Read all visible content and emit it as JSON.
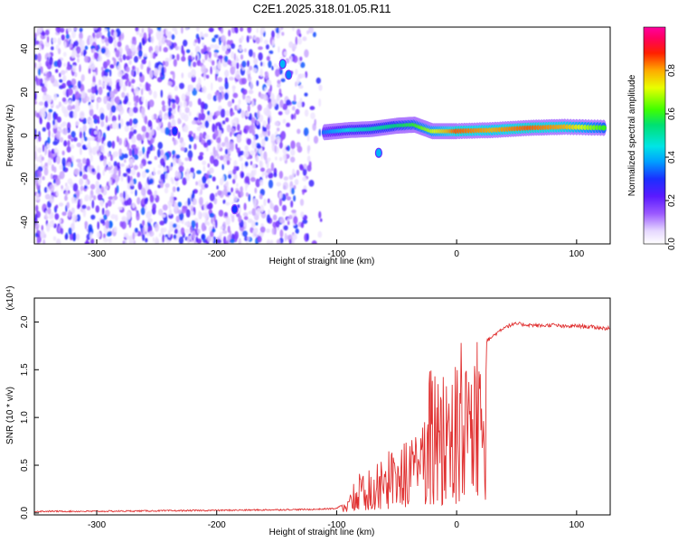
{
  "title": "C2E1.2025.318.01.05.R11",
  "chart_data": [
    {
      "type": "heatmap",
      "xlabel": "Height of straight line (km)",
      "ylabel": "Frequency (Hz)",
      "xlim": [
        -352,
        128
      ],
      "ylim": [
        -50,
        50
      ],
      "x_ticks": [
        -300,
        -200,
        -100,
        0,
        100
      ],
      "x_tick_labels": [
        "-300",
        "-200",
        "-100",
        "0",
        "100"
      ],
      "y_ticks": [
        -40,
        -20,
        0,
        20,
        40
      ],
      "y_tick_labels": [
        "-40",
        "-20",
        "0",
        "20",
        "40"
      ],
      "colorbar": {
        "label": "Normalized spectral amplitude",
        "range": [
          0,
          1
        ],
        "ticks": [
          0.0,
          0.2,
          0.4,
          0.6,
          0.8
        ],
        "tick_labels": [
          "0.0",
          "0.2",
          "0.4",
          "0.6",
          "0.8"
        ],
        "colormap": "white-purple-blue-cyan-green-yellow-red-magenta"
      },
      "noise_region": {
        "x_range": [
          -352,
          -110
        ],
        "freq_range": [
          -50,
          50
        ],
        "amplitude": "low (0.0-0.15)"
      },
      "signal_ridge": [
        {
          "x": -110,
          "freq": 1.5,
          "amplitude": 0.35
        },
        {
          "x": -90,
          "freq": 2.5,
          "amplitude": 0.45
        },
        {
          "x": -70,
          "freq": 3,
          "amplitude": 0.5
        },
        {
          "x": -50,
          "freq": 4.5,
          "amplitude": 0.55
        },
        {
          "x": -35,
          "freq": 5,
          "amplitude": 0.6
        },
        {
          "x": -20,
          "freq": 2,
          "amplitude": 0.7
        },
        {
          "x": 0,
          "freq": 2,
          "amplitude": 0.85
        },
        {
          "x": 30,
          "freq": 2.5,
          "amplitude": 0.8
        },
        {
          "x": 60,
          "freq": 3.5,
          "amplitude": 0.85
        },
        {
          "x": 90,
          "freq": 4,
          "amplitude": 0.8
        },
        {
          "x": 125,
          "freq": 3.5,
          "amplitude": 0.6
        }
      ],
      "secondary_features": [
        {
          "x": -145,
          "freq": 33,
          "amplitude": 0.4
        },
        {
          "x": -140,
          "freq": 28,
          "amplitude": 0.35
        },
        {
          "x": -235,
          "freq": 2,
          "amplitude": 0.3
        },
        {
          "x": -185,
          "freq": -34,
          "amplitude": 0.3
        },
        {
          "x": -65,
          "freq": -8,
          "amplitude": 0.4
        }
      ],
      "grid": false
    },
    {
      "type": "line",
      "xlabel": "Height of straight line (km)",
      "ylabel": "SNR (10 * v/v)",
      "y_multiplier": "(x10⁴)",
      "xlim": [
        -352,
        128
      ],
      "ylim": [
        -0.02,
        2.25
      ],
      "x_ticks": [
        -300,
        -200,
        -100,
        0,
        100
      ],
      "x_tick_labels": [
        "-300",
        "-200",
        "-100",
        "0",
        "100"
      ],
      "y_ticks": [
        0.0,
        0.5,
        1.0,
        1.5,
        2.0
      ],
      "y_tick_labels": [
        "0.0",
        "0.5",
        "1.0",
        "1.5",
        "2.0"
      ],
      "color": "#e03030",
      "series": [
        {
          "x": [
            -352,
            -300,
            -200,
            -120,
            -100,
            -95,
            -90,
            -85,
            -80,
            -75,
            -70,
            -65,
            -60,
            -55,
            -50,
            -45,
            -40,
            -35,
            -30,
            -25,
            -20,
            -15,
            -10,
            -5,
            0,
            5,
            10,
            15,
            20,
            25,
            30,
            40,
            50,
            60,
            70,
            80,
            90,
            100,
            110,
            128
          ],
          "y": [
            0.01,
            0.01,
            0.02,
            0.03,
            0.04,
            0.08,
            0.15,
            0.3,
            0.4,
            0.35,
            0.5,
            0.45,
            0.55,
            0.6,
            0.5,
            0.65,
            0.7,
            0.75,
            0.8,
            0.9,
            1.0,
            0.95,
            1.05,
            1.1,
            1.15,
            1.3,
            1.45,
            1.6,
            1.7,
            1.8,
            1.85,
            1.95,
            1.98,
            1.97,
            1.96,
            1.97,
            1.95,
            1.96,
            1.95,
            1.93
          ]
        }
      ],
      "grid": false
    }
  ]
}
